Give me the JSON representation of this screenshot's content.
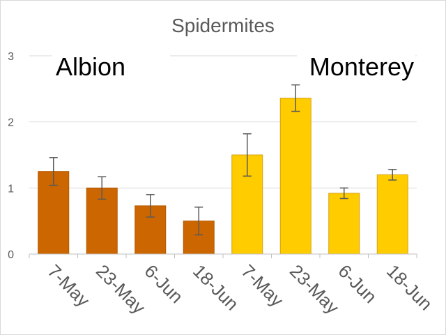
{
  "chart_data": {
    "type": "bar",
    "title": "Spidermites",
    "xlabel": "",
    "ylabel": "",
    "ylim": [
      0,
      3
    ],
    "yticks": [
      0,
      1,
      2,
      3
    ],
    "grid": true,
    "groups": [
      {
        "label": "Albion",
        "color": "#cc6600",
        "edge": "#b35900"
      },
      {
        "label": "Monterey",
        "color": "#ffcc00",
        "edge": "#d4a017"
      }
    ],
    "categories": [
      "7-May",
      "23-May",
      "6-Jun",
      "18-Jun",
      "7-May",
      "23-May",
      "6-Jun",
      "18-Jun"
    ],
    "group_index": [
      0,
      0,
      0,
      0,
      1,
      1,
      1,
      1
    ],
    "values": [
      1.25,
      1.0,
      0.73,
      0.5,
      1.5,
      2.36,
      0.92,
      1.2
    ],
    "error": [
      0.21,
      0.17,
      0.17,
      0.21,
      0.32,
      0.2,
      0.08,
      0.08
    ]
  }
}
